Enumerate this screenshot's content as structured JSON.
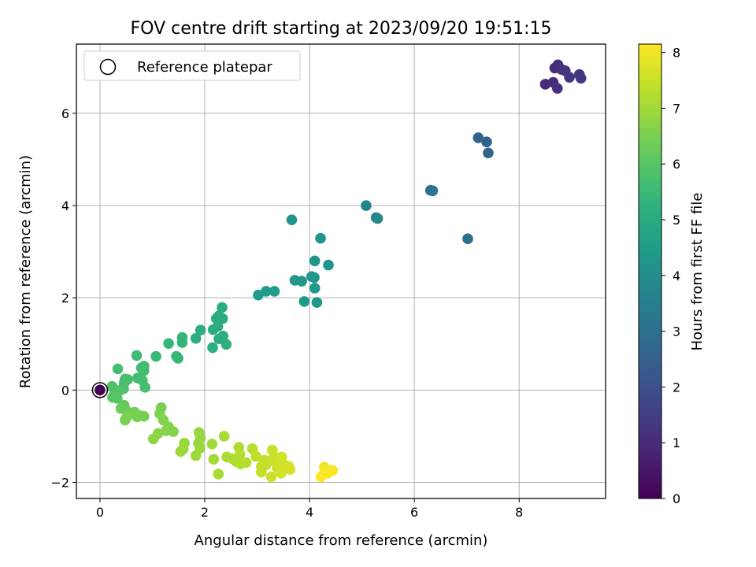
{
  "chart_data": {
    "type": "scatter",
    "title": "FOV centre drift starting at 2023/09/20 19:51:15",
    "xlabel": "Angular distance from reference (arcmin)",
    "ylabel": "Rotation from reference (arcmin)",
    "xlim": [
      -0.45,
      9.65
    ],
    "ylim": [
      -2.35,
      7.5
    ],
    "xticks": [
      0,
      2,
      4,
      6,
      8
    ],
    "yticks": [
      -2,
      0,
      2,
      4,
      6
    ],
    "grid": true,
    "legend": {
      "placement": "top-left",
      "entries": [
        "Reference platepar"
      ]
    },
    "colorbar": {
      "label": "Hours from first FF file",
      "colormap": "viridis",
      "range": [
        0,
        8.15
      ],
      "ticks": [
        0,
        1,
        2,
        3,
        4,
        5,
        6,
        7,
        8
      ]
    },
    "reference_point": {
      "x": 0,
      "y": 0
    },
    "points": [
      {
        "x": 0.0,
        "y": 0.0,
        "t": 0.0
      },
      {
        "x": 8.5,
        "y": 6.63,
        "t": 1.0
      },
      {
        "x": 8.65,
        "y": 6.67,
        "t": 1.05
      },
      {
        "x": 8.68,
        "y": 6.98,
        "t": 1.1
      },
      {
        "x": 8.74,
        "y": 7.05,
        "t": 1.12
      },
      {
        "x": 8.73,
        "y": 6.54,
        "t": 1.15
      },
      {
        "x": 8.81,
        "y": 6.95,
        "t": 1.2
      },
      {
        "x": 8.88,
        "y": 6.92,
        "t": 1.22
      },
      {
        "x": 8.96,
        "y": 6.78,
        "t": 1.25
      },
      {
        "x": 9.15,
        "y": 6.84,
        "t": 1.3
      },
      {
        "x": 9.18,
        "y": 6.76,
        "t": 1.32
      },
      {
        "x": 7.22,
        "y": 5.47,
        "t": 2.5
      },
      {
        "x": 7.38,
        "y": 5.38,
        "t": 2.55
      },
      {
        "x": 7.41,
        "y": 5.14,
        "t": 2.6
      },
      {
        "x": 6.31,
        "y": 4.33,
        "t": 3.0
      },
      {
        "x": 6.35,
        "y": 4.32,
        "t": 3.05
      },
      {
        "x": 7.02,
        "y": 3.28,
        "t": 3.0
      },
      {
        "x": 5.08,
        "y": 4.0,
        "t": 3.7
      },
      {
        "x": 5.27,
        "y": 3.74,
        "t": 3.75
      },
      {
        "x": 5.3,
        "y": 3.72,
        "t": 3.78
      },
      {
        "x": 3.66,
        "y": 3.69,
        "t": 4.2
      },
      {
        "x": 4.21,
        "y": 3.29,
        "t": 4.2
      },
      {
        "x": 4.1,
        "y": 2.8,
        "t": 4.25
      },
      {
        "x": 4.36,
        "y": 2.71,
        "t": 4.25
      },
      {
        "x": 3.72,
        "y": 2.38,
        "t": 4.3
      },
      {
        "x": 3.85,
        "y": 2.36,
        "t": 4.3
      },
      {
        "x": 4.04,
        "y": 2.46,
        "t": 4.32
      },
      {
        "x": 4.09,
        "y": 2.44,
        "t": 4.32
      },
      {
        "x": 4.1,
        "y": 2.21,
        "t": 4.35
      },
      {
        "x": 3.9,
        "y": 1.92,
        "t": 4.35
      },
      {
        "x": 4.14,
        "y": 1.9,
        "t": 4.35
      },
      {
        "x": 3.02,
        "y": 2.06,
        "t": 4.5
      },
      {
        "x": 3.17,
        "y": 2.14,
        "t": 4.5
      },
      {
        "x": 3.33,
        "y": 2.14,
        "t": 4.5
      },
      {
        "x": 2.33,
        "y": 1.79,
        "t": 5.0
      },
      {
        "x": 2.22,
        "y": 1.55,
        "t": 5.0
      },
      {
        "x": 2.27,
        "y": 1.61,
        "t": 5.0
      },
      {
        "x": 2.34,
        "y": 1.55,
        "t": 5.02
      },
      {
        "x": 2.16,
        "y": 1.31,
        "t": 5.05
      },
      {
        "x": 2.25,
        "y": 1.38,
        "t": 5.05
      },
      {
        "x": 1.92,
        "y": 1.3,
        "t": 5.1
      },
      {
        "x": 2.27,
        "y": 1.11,
        "t": 5.1
      },
      {
        "x": 2.35,
        "y": 1.17,
        "t": 5.1
      },
      {
        "x": 1.83,
        "y": 1.12,
        "t": 5.12
      },
      {
        "x": 2.41,
        "y": 0.99,
        "t": 5.15
      },
      {
        "x": 2.15,
        "y": 0.92,
        "t": 5.15
      },
      {
        "x": 1.57,
        "y": 1.14,
        "t": 5.4
      },
      {
        "x": 1.57,
        "y": 1.03,
        "t": 5.4
      },
      {
        "x": 1.31,
        "y": 1.01,
        "t": 5.45
      },
      {
        "x": 1.46,
        "y": 0.73,
        "t": 5.45
      },
      {
        "x": 1.49,
        "y": 0.69,
        "t": 5.45
      },
      {
        "x": 1.07,
        "y": 0.73,
        "t": 5.5
      },
      {
        "x": 0.7,
        "y": 0.75,
        "t": 5.6
      },
      {
        "x": 0.84,
        "y": 0.52,
        "t": 5.6
      },
      {
        "x": 0.84,
        "y": 0.42,
        "t": 5.62
      },
      {
        "x": 0.79,
        "y": 0.48,
        "t": 5.62
      },
      {
        "x": 0.34,
        "y": 0.46,
        "t": 5.7
      },
      {
        "x": 0.72,
        "y": 0.26,
        "t": 5.7
      },
      {
        "x": 0.81,
        "y": 0.21,
        "t": 5.72
      },
      {
        "x": 0.86,
        "y": 0.06,
        "t": 5.72
      },
      {
        "x": 0.48,
        "y": 0.24,
        "t": 5.75
      },
      {
        "x": 0.53,
        "y": 0.23,
        "t": 5.75
      },
      {
        "x": 0.46,
        "y": 0.15,
        "t": 5.78
      },
      {
        "x": 0.45,
        "y": 0.03,
        "t": 5.8
      },
      {
        "x": 0.23,
        "y": 0.08,
        "t": 5.8
      },
      {
        "x": 0.28,
        "y": 0.0,
        "t": 5.85
      },
      {
        "x": 0.37,
        "y": -0.01,
        "t": 5.88
      },
      {
        "x": 0.26,
        "y": -0.13,
        "t": 5.95
      },
      {
        "x": 0.33,
        "y": -0.18,
        "t": 6.0
      },
      {
        "x": 0.24,
        "y": -0.16,
        "t": 6.0
      },
      {
        "x": 0.46,
        "y": -0.33,
        "t": 6.2
      },
      {
        "x": 0.4,
        "y": -0.4,
        "t": 6.3
      },
      {
        "x": 0.5,
        "y": -0.44,
        "t": 6.3
      },
      {
        "x": 0.66,
        "y": -0.48,
        "t": 6.4
      },
      {
        "x": 0.75,
        "y": -0.55,
        "t": 6.45
      },
      {
        "x": 0.84,
        "y": -0.57,
        "t": 6.45
      },
      {
        "x": 0.71,
        "y": -0.58,
        "t": 6.45
      },
      {
        "x": 0.48,
        "y": -0.65,
        "t": 6.5
      },
      {
        "x": 0.52,
        "y": -0.57,
        "t": 6.5
      },
      {
        "x": 1.17,
        "y": -0.38,
        "t": 6.5
      },
      {
        "x": 1.14,
        "y": -0.51,
        "t": 6.55
      },
      {
        "x": 1.21,
        "y": -0.65,
        "t": 6.6
      },
      {
        "x": 1.31,
        "y": -0.8,
        "t": 6.62
      },
      {
        "x": 1.26,
        "y": -0.88,
        "t": 6.65
      },
      {
        "x": 1.4,
        "y": -0.9,
        "t": 6.65
      },
      {
        "x": 1.11,
        "y": -0.94,
        "t": 6.7
      },
      {
        "x": 1.02,
        "y": -1.06,
        "t": 6.75
      },
      {
        "x": 1.89,
        "y": -0.92,
        "t": 6.85
      },
      {
        "x": 1.92,
        "y": -1.04,
        "t": 6.85
      },
      {
        "x": 1.61,
        "y": -1.15,
        "t": 6.9
      },
      {
        "x": 1.88,
        "y": -1.15,
        "t": 6.9
      },
      {
        "x": 1.91,
        "y": -1.26,
        "t": 6.92
      },
      {
        "x": 1.59,
        "y": -1.28,
        "t": 6.95
      },
      {
        "x": 1.54,
        "y": -1.33,
        "t": 6.95
      },
      {
        "x": 1.83,
        "y": -1.42,
        "t": 6.97
      },
      {
        "x": 2.14,
        "y": -1.17,
        "t": 7.0
      },
      {
        "x": 2.17,
        "y": -1.5,
        "t": 7.05
      },
      {
        "x": 2.26,
        "y": -1.82,
        "t": 7.1
      },
      {
        "x": 2.37,
        "y": -1.0,
        "t": 7.1
      },
      {
        "x": 2.42,
        "y": -1.45,
        "t": 7.12
      },
      {
        "x": 2.53,
        "y": -1.49,
        "t": 7.15
      },
      {
        "x": 2.65,
        "y": -1.24,
        "t": 7.18
      },
      {
        "x": 2.67,
        "y": -1.39,
        "t": 7.2
      },
      {
        "x": 2.6,
        "y": -1.55,
        "t": 7.2
      },
      {
        "x": 2.68,
        "y": -1.6,
        "t": 7.22
      },
      {
        "x": 2.79,
        "y": -1.57,
        "t": 7.25
      },
      {
        "x": 2.91,
        "y": -1.27,
        "t": 7.3
      },
      {
        "x": 2.98,
        "y": -1.44,
        "t": 7.35
      },
      {
        "x": 3.14,
        "y": -1.52,
        "t": 7.4
      },
      {
        "x": 3.17,
        "y": -1.62,
        "t": 7.4
      },
      {
        "x": 3.08,
        "y": -1.66,
        "t": 7.45
      },
      {
        "x": 3.08,
        "y": -1.78,
        "t": 7.45
      },
      {
        "x": 3.29,
        "y": -1.3,
        "t": 7.5
      },
      {
        "x": 3.33,
        "y": -1.45,
        "t": 7.5
      },
      {
        "x": 3.27,
        "y": -1.52,
        "t": 7.5
      },
      {
        "x": 3.38,
        "y": -1.68,
        "t": 7.55
      },
      {
        "x": 3.27,
        "y": -1.88,
        "t": 7.55
      },
      {
        "x": 3.4,
        "y": -1.55,
        "t": 7.55
      },
      {
        "x": 3.47,
        "y": -1.45,
        "t": 7.6
      },
      {
        "x": 3.52,
        "y": -1.62,
        "t": 7.6
      },
      {
        "x": 3.58,
        "y": -1.7,
        "t": 7.65
      },
      {
        "x": 3.6,
        "y": -1.65,
        "t": 7.65
      },
      {
        "x": 3.63,
        "y": -1.72,
        "t": 7.65
      },
      {
        "x": 3.46,
        "y": -1.8,
        "t": 7.62
      },
      {
        "x": 4.28,
        "y": -1.67,
        "t": 8.0
      },
      {
        "x": 4.3,
        "y": -1.75,
        "t": 8.05
      },
      {
        "x": 4.35,
        "y": -1.8,
        "t": 8.08
      },
      {
        "x": 4.44,
        "y": -1.74,
        "t": 8.1
      },
      {
        "x": 4.22,
        "y": -1.88,
        "t": 8.12
      }
    ]
  }
}
